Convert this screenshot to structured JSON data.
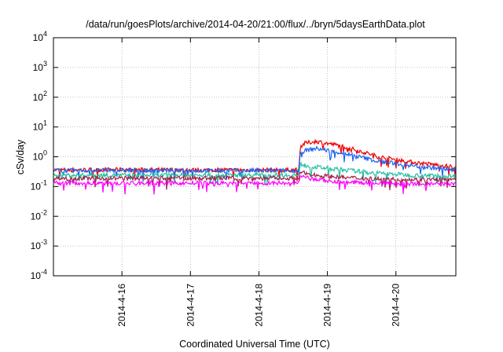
{
  "chart_data": {
    "type": "line",
    "title": "/data/run/goesPlots/archive/2014-04-20/21:00/flux/../bryn/5daysEarthData.plot",
    "xlabel": "Coordinated Universal Time (UTC)",
    "ylabel": "cSv/day",
    "yscale": "log",
    "ylim": [
      0.0001,
      10000
    ],
    "xlim": [
      "2014-04-15T00:00",
      "2014-04-20T21:00"
    ],
    "yticks": [
      {
        "value": 0.0001,
        "base": "10",
        "exp": "-4"
      },
      {
        "value": 0.001,
        "base": "10",
        "exp": "-3"
      },
      {
        "value": 0.01,
        "base": "10",
        "exp": "-2"
      },
      {
        "value": 0.1,
        "base": "10",
        "exp": "-1"
      },
      {
        "value": 1,
        "base": "10",
        "exp": "0"
      },
      {
        "value": 10,
        "base": "10",
        "exp": "1"
      },
      {
        "value": 100,
        "base": "10",
        "exp": "2"
      },
      {
        "value": 1000,
        "base": "10",
        "exp": "3"
      },
      {
        "value": 10000,
        "base": "10",
        "exp": "4"
      }
    ],
    "xticks": [
      {
        "value": "2014-04-16T00:00",
        "label": "2014-4-16"
      },
      {
        "value": "2014-04-17T00:00",
        "label": "2014-4-17"
      },
      {
        "value": "2014-04-18T00:00",
        "label": "2014-4-18"
      },
      {
        "value": "2014-04-19T00:00",
        "label": "2014-4-19"
      },
      {
        "value": "2014-04-20T00:00",
        "label": "2014-4-20"
      }
    ],
    "grid": true,
    "legend": "none",
    "series": [
      {
        "color": "#ee0000",
        "x": [
          "2014-04-15T00:00",
          "2014-04-16T00:00",
          "2014-04-17T00:00",
          "2014-04-18T00:00",
          "2014-04-18T14:00",
          "2014-04-18T14:30",
          "2014-04-18T16:00",
          "2014-04-18T20:00",
          "2014-04-19T06:00",
          "2014-04-19T18:00",
          "2014-04-20T06:00",
          "2014-04-20T21:00"
        ],
        "values": [
          0.36,
          0.37,
          0.36,
          0.36,
          0.36,
          2.2,
          2.8,
          3.3,
          2.2,
          1.0,
          0.65,
          0.45
        ]
      },
      {
        "color": "#1e64f0",
        "x": [
          "2014-04-15T00:00",
          "2014-04-16T00:00",
          "2014-04-17T00:00",
          "2014-04-18T00:00",
          "2014-04-18T14:00",
          "2014-04-18T14:30",
          "2014-04-18T16:00",
          "2014-04-18T20:00",
          "2014-04-19T06:00",
          "2014-04-19T18:00",
          "2014-04-20T06:00",
          "2014-04-20T21:00"
        ],
        "values": [
          0.34,
          0.35,
          0.34,
          0.34,
          0.34,
          1.3,
          1.6,
          1.9,
          1.3,
          0.7,
          0.5,
          0.35
        ]
      },
      {
        "color": "#20c0a0",
        "x": [
          "2014-04-15T00:00",
          "2014-04-16T00:00",
          "2014-04-17T00:00",
          "2014-04-18T00:00",
          "2014-04-18T14:00",
          "2014-04-18T14:30",
          "2014-04-18T16:00",
          "2014-04-18T20:00",
          "2014-04-19T06:00",
          "2014-04-19T18:00",
          "2014-04-20T06:00",
          "2014-04-20T21:00"
        ],
        "values": [
          0.24,
          0.24,
          0.24,
          0.24,
          0.24,
          0.55,
          0.52,
          0.45,
          0.36,
          0.28,
          0.24,
          0.22
        ]
      },
      {
        "color": "#a0204a",
        "x": [
          "2014-04-15T00:00",
          "2014-04-16T00:00",
          "2014-04-17T00:00",
          "2014-04-18T00:00",
          "2014-04-18T14:00",
          "2014-04-18T14:30",
          "2014-04-18T16:00",
          "2014-04-18T20:00",
          "2014-04-19T06:00",
          "2014-04-19T18:00",
          "2014-04-20T06:00",
          "2014-04-20T21:00"
        ],
        "values": [
          0.19,
          0.19,
          0.19,
          0.19,
          0.19,
          0.3,
          0.28,
          0.24,
          0.2,
          0.18,
          0.17,
          0.17
        ]
      },
      {
        "color": "#ff00ff",
        "x": [
          "2014-04-15T00:00",
          "2014-04-16T00:00",
          "2014-04-17T00:00",
          "2014-04-18T00:00",
          "2014-04-18T14:00",
          "2014-04-18T14:30",
          "2014-04-18T16:00",
          "2014-04-18T20:00",
          "2014-04-19T06:00",
          "2014-04-19T18:00",
          "2014-04-20T06:00",
          "2014-04-20T21:00"
        ],
        "values": [
          0.13,
          0.13,
          0.13,
          0.13,
          0.13,
          0.22,
          0.2,
          0.17,
          0.14,
          0.13,
          0.12,
          0.12
        ]
      }
    ]
  }
}
